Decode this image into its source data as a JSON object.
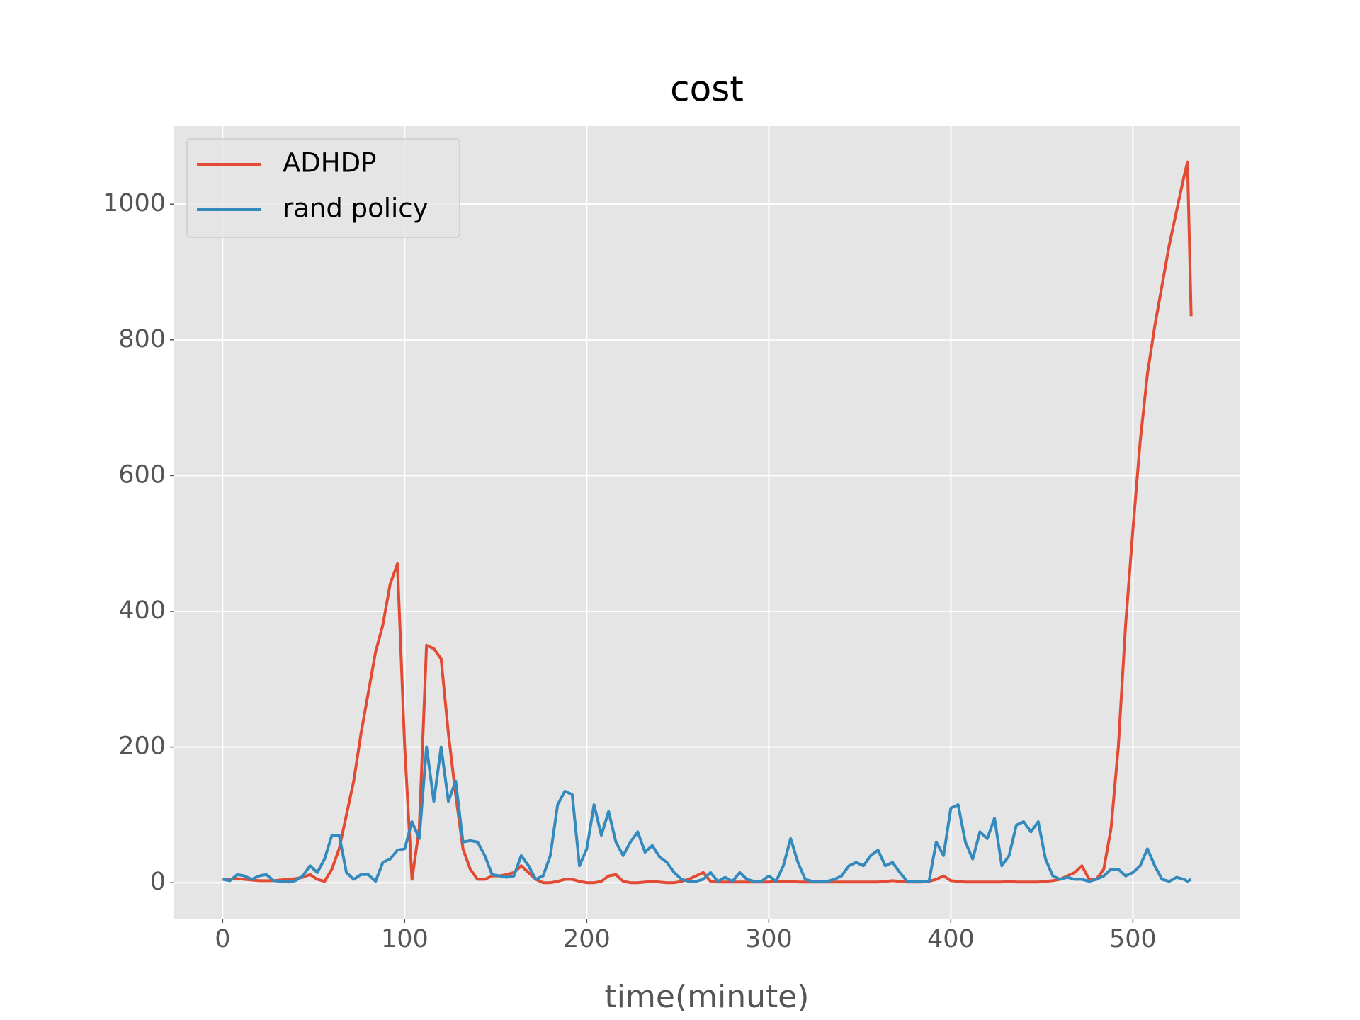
{
  "chart_data": {
    "type": "line",
    "title": "cost",
    "xlabel": "time(minute)",
    "x": [
      0,
      4,
      8,
      12,
      16,
      20,
      24,
      28,
      32,
      36,
      40,
      44,
      48,
      52,
      56,
      60,
      64,
      68,
      72,
      76,
      80,
      84,
      88,
      92,
      96,
      100,
      104,
      108,
      112,
      116,
      120,
      124,
      128,
      132,
      136,
      140,
      144,
      148,
      152,
      156,
      160,
      164,
      168,
      172,
      176,
      180,
      184,
      188,
      192,
      196,
      200,
      204,
      208,
      212,
      216,
      220,
      224,
      228,
      232,
      236,
      240,
      244,
      248,
      252,
      256,
      260,
      264,
      268,
      272,
      276,
      280,
      284,
      288,
      292,
      296,
      300,
      304,
      308,
      312,
      316,
      320,
      324,
      328,
      332,
      336,
      340,
      344,
      348,
      352,
      356,
      360,
      364,
      368,
      372,
      376,
      380,
      384,
      388,
      392,
      396,
      400,
      404,
      408,
      412,
      416,
      420,
      424,
      428,
      432,
      436,
      440,
      444,
      448,
      452,
      456,
      460,
      464,
      468,
      472,
      476,
      480,
      484,
      488,
      492,
      496,
      500,
      504,
      508,
      512,
      516,
      520,
      524,
      528,
      530,
      532
    ],
    "series": [
      {
        "name": "ADHDP",
        "color": "#E24A33",
        "values": [
          5,
          5,
          6,
          5,
          4,
          3,
          3,
          3,
          4,
          5,
          6,
          8,
          12,
          5,
          2,
          20,
          50,
          100,
          150,
          220,
          280,
          340,
          380,
          440,
          470,
          200,
          5,
          80,
          350,
          345,
          330,
          220,
          130,
          50,
          20,
          5,
          5,
          10,
          10,
          12,
          15,
          25,
          15,
          5,
          0,
          0,
          2,
          5,
          5,
          2,
          0,
          0,
          2,
          10,
          12,
          2,
          0,
          0,
          1,
          2,
          1,
          0,
          0,
          2,
          5,
          10,
          15,
          2,
          1,
          1,
          1,
          1,
          1,
          1,
          1,
          1,
          2,
          2,
          2,
          1,
          1,
          1,
          1,
          1,
          1,
          1,
          1,
          1,
          1,
          1,
          1,
          2,
          3,
          2,
          1,
          1,
          1,
          2,
          5,
          10,
          3,
          2,
          1,
          1,
          1,
          1,
          1,
          1,
          2,
          1,
          1,
          1,
          1,
          2,
          3,
          5,
          10,
          15,
          25,
          5,
          5,
          20,
          80,
          200,
          380,
          520,
          650,
          750,
          820,
          880,
          940,
          990,
          1040,
          1062,
          835
        ]
      },
      {
        "name": "rand policy",
        "color": "#348ABD",
        "values": [
          5,
          3,
          12,
          10,
          5,
          10,
          12,
          3,
          2,
          1,
          3,
          10,
          25,
          15,
          35,
          70,
          70,
          15,
          5,
          12,
          12,
          2,
          30,
          35,
          48,
          50,
          90,
          65,
          200,
          120,
          200,
          120,
          150,
          60,
          62,
          60,
          40,
          12,
          10,
          8,
          10,
          40,
          25,
          5,
          10,
          40,
          115,
          135,
          130,
          25,
          50,
          115,
          70,
          105,
          60,
          40,
          60,
          75,
          45,
          55,
          38,
          30,
          15,
          5,
          2,
          2,
          5,
          15,
          2,
          8,
          2,
          15,
          5,
          2,
          2,
          10,
          2,
          25,
          65,
          30,
          5,
          2,
          2,
          2,
          5,
          10,
          25,
          30,
          25,
          40,
          48,
          25,
          30,
          15,
          2,
          2,
          2,
          2,
          60,
          40,
          110,
          115,
          60,
          35,
          75,
          65,
          95,
          25,
          40,
          85,
          90,
          75,
          90,
          35,
          10,
          5,
          8,
          5,
          5,
          2,
          5,
          10,
          20,
          20,
          10,
          15,
          25,
          50,
          25,
          5,
          2,
          8,
          5,
          2,
          5
        ]
      }
    ],
    "xlim": [
      -26.6,
      558.6
    ],
    "xticks": [
      0,
      100,
      200,
      300,
      400,
      500
    ],
    "ylim": [
      -53,
      1115
    ],
    "yticks": [
      0,
      200,
      400,
      600,
      800,
      1000
    ],
    "grid": true,
    "legend": "upper left"
  }
}
